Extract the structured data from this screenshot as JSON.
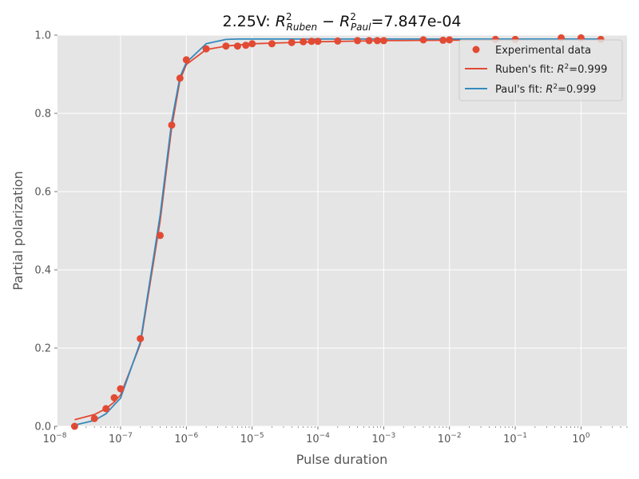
{
  "chart_data": {
    "type": "scatter",
    "title": {
      "prefix": "2.25V: ",
      "r1_sub": "Ruben",
      "minus": " − ",
      "r2_sub": "Paul",
      "suffix": "=7.847e-04"
    },
    "xlabel": "Pulse duration",
    "ylabel": "Partial polarization",
    "xscale": "log",
    "xlim": [
      1.1e-08,
      5
    ],
    "ylim": [
      0,
      1.0
    ],
    "grid": true,
    "legend_position": "top-right",
    "x_ticks": [
      {
        "value": 1e-08,
        "base": "10",
        "exp": "−8"
      },
      {
        "value": 1e-07,
        "base": "10",
        "exp": "−7"
      },
      {
        "value": 1e-06,
        "base": "10",
        "exp": "−6"
      },
      {
        "value": 1e-05,
        "base": "10",
        "exp": "−5"
      },
      {
        "value": 0.0001,
        "base": "10",
        "exp": "−4"
      },
      {
        "value": 0.001,
        "base": "10",
        "exp": "−3"
      },
      {
        "value": 0.01,
        "base": "10",
        "exp": "−2"
      },
      {
        "value": 0.1,
        "base": "10",
        "exp": "−1"
      },
      {
        "value": 1,
        "base": "10",
        "exp": "0"
      }
    ],
    "y_ticks": [
      {
        "value": 0.0,
        "label": "0.0"
      },
      {
        "value": 0.2,
        "label": "0.2"
      },
      {
        "value": 0.4,
        "label": "0.4"
      },
      {
        "value": 0.6,
        "label": "0.6"
      },
      {
        "value": 0.8,
        "label": "0.8"
      },
      {
        "value": 1.0,
        "label": "1.0"
      }
    ],
    "series": [
      {
        "name": "Experimental data",
        "kind": "scatter",
        "color": "#E24A33",
        "x": [
          2e-08,
          4e-08,
          6e-08,
          8e-08,
          1e-07,
          2e-07,
          4e-07,
          6e-07,
          8e-07,
          1e-06,
          2e-06,
          4e-06,
          6e-06,
          8e-06,
          1e-05,
          2e-05,
          4e-05,
          6e-05,
          8e-05,
          0.0001,
          0.0002,
          0.0004,
          0.0006,
          0.0008,
          0.001,
          0.004,
          0.008,
          0.01,
          0.05,
          0.1,
          0.5,
          1,
          2
        ],
        "y": [
          0.0,
          0.02,
          0.045,
          0.073,
          0.096,
          0.224,
          0.488,
          0.77,
          0.89,
          0.937,
          0.965,
          0.972,
          0.972,
          0.974,
          0.978,
          0.978,
          0.981,
          0.983,
          0.984,
          0.984,
          0.985,
          0.986,
          0.986,
          0.986,
          0.986,
          0.988,
          0.987,
          0.988,
          0.989,
          0.989,
          0.993,
          0.993,
          0.989
        ]
      },
      {
        "name_prefix": "Ruben's fit: ",
        "name_suffix": "=0.999",
        "kind": "line",
        "color": "#E24A33",
        "x": [
          2e-08,
          4e-08,
          6e-08,
          8e-08,
          1e-07,
          2e-07,
          4e-07,
          6e-07,
          8e-07,
          1e-06,
          2e-06,
          4e-06,
          1e-05,
          0.0001,
          0.001,
          0.01,
          0.1,
          1,
          2
        ],
        "y": [
          0.017,
          0.03,
          0.045,
          0.062,
          0.08,
          0.21,
          0.525,
          0.765,
          0.885,
          0.925,
          0.963,
          0.972,
          0.978,
          0.983,
          0.986,
          0.987,
          0.988,
          0.989,
          0.989
        ]
      },
      {
        "name_prefix": "Paul's fit: ",
        "name_suffix": "=0.999",
        "kind": "line",
        "color": "#348ABD",
        "x": [
          2e-08,
          4e-08,
          6e-08,
          8e-08,
          1e-07,
          2e-07,
          4e-07,
          6e-07,
          8e-07,
          1e-06,
          2e-06,
          4e-06,
          6e-06,
          1e-05,
          0.0001,
          0.001,
          0.01,
          0.1,
          1,
          2
        ],
        "y": [
          0.003,
          0.015,
          0.032,
          0.055,
          0.072,
          0.215,
          0.54,
          0.78,
          0.893,
          0.93,
          0.978,
          0.989,
          0.99,
          0.99,
          0.99,
          0.99,
          0.99,
          0.99,
          0.99,
          0.99
        ]
      }
    ],
    "legend": {
      "entries": [
        "Experimental data",
        "Ruben's fit",
        "Paul's fit"
      ],
      "r_symbol": "R",
      "r_sup": "2"
    }
  }
}
